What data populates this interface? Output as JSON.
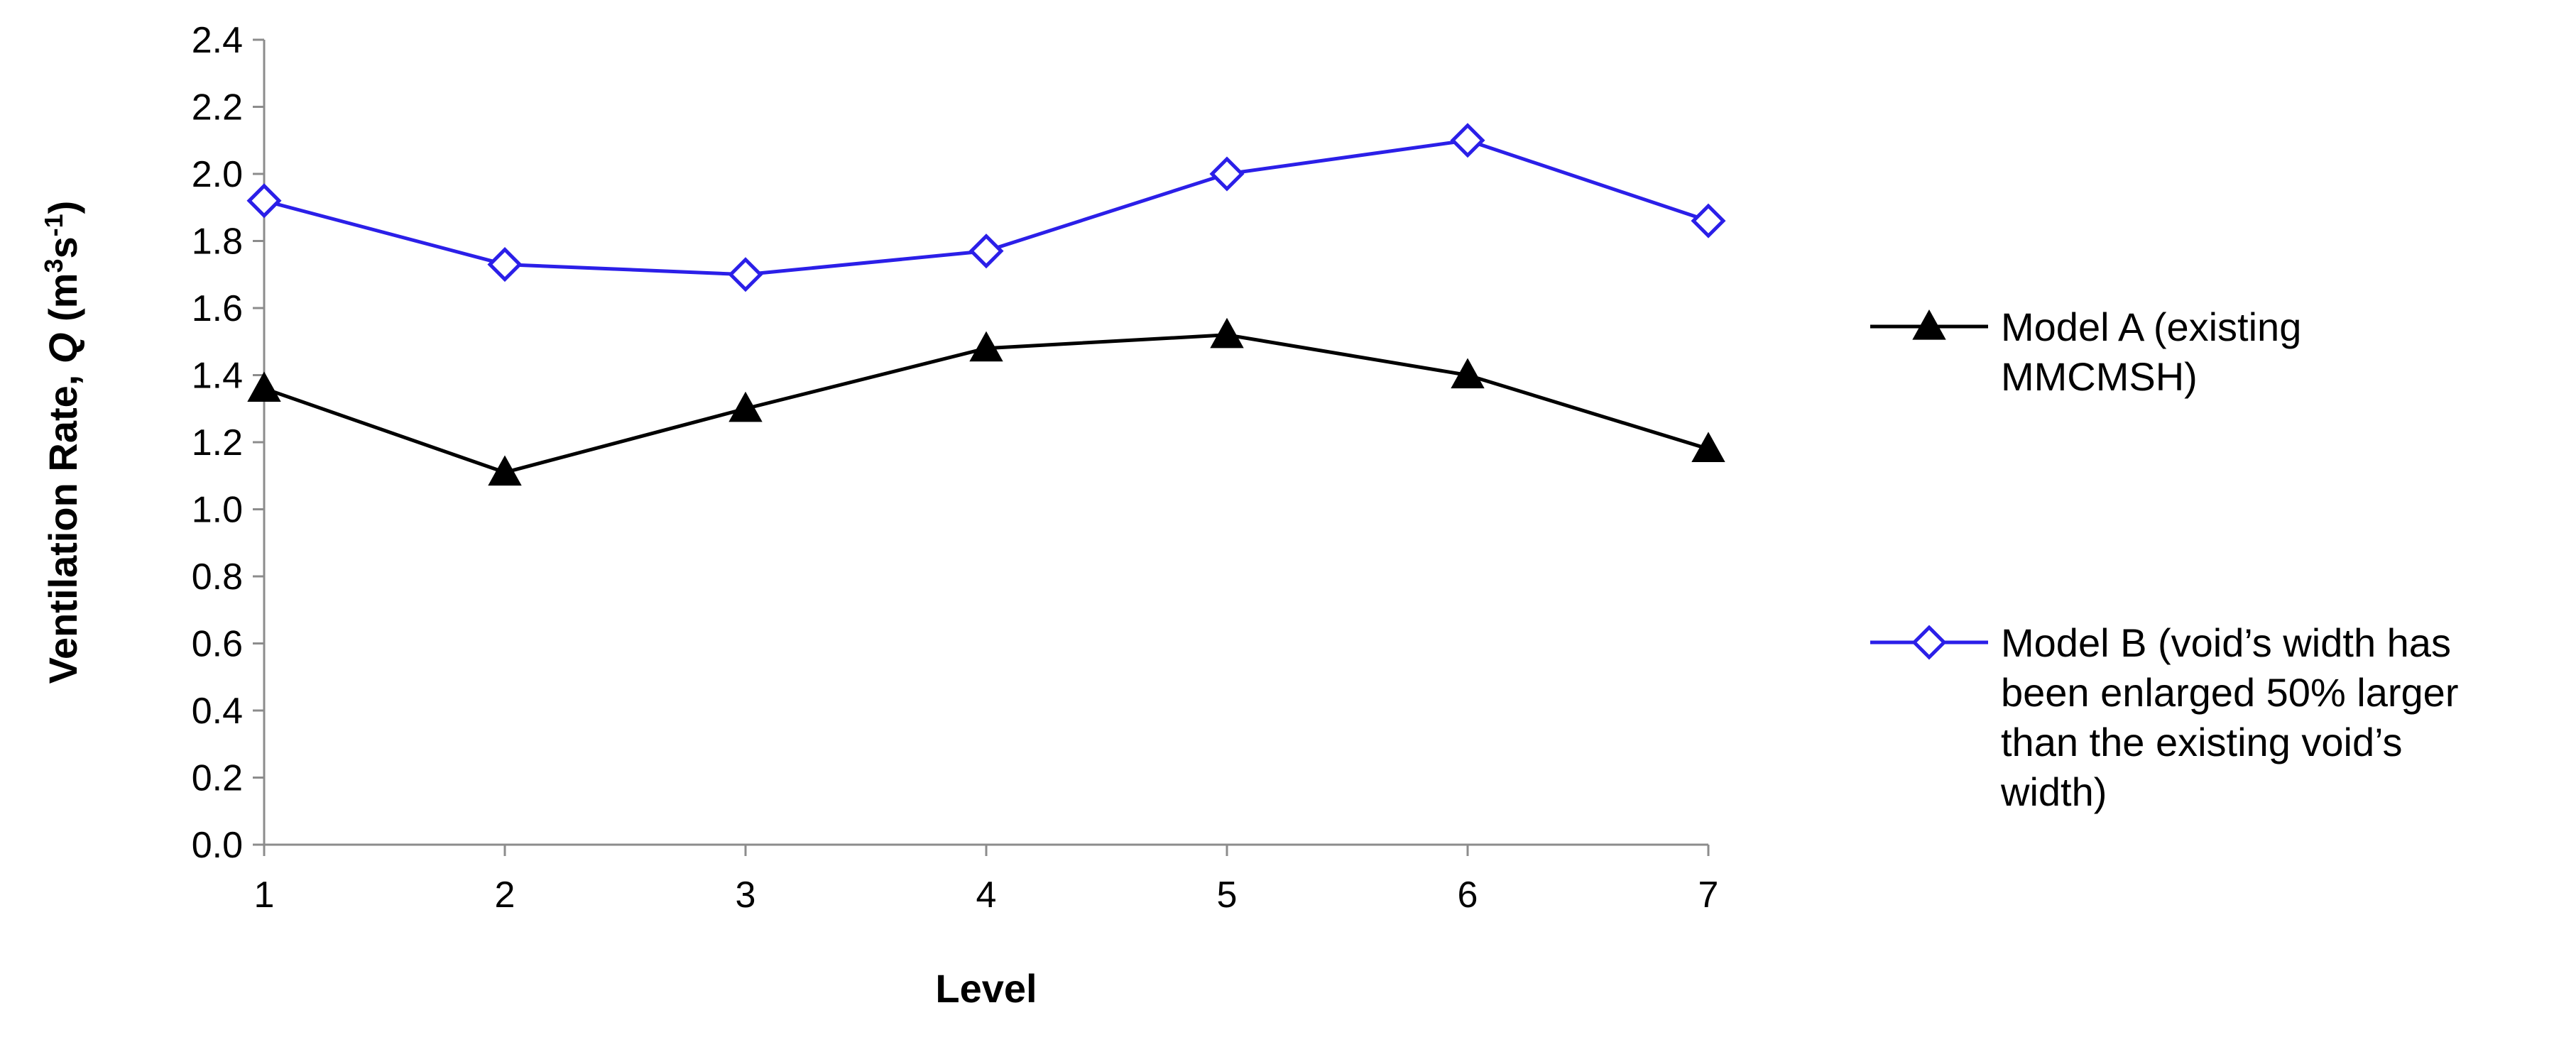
{
  "chart_data": {
    "type": "line",
    "title": "",
    "xlabel": "Level",
    "ylabel": {
      "prefix": "Ventilation Rate, ",
      "var": "Q",
      "unit_open": " (m",
      "unit_sup1": "3",
      "unit_mid": "s",
      "unit_sup2": "-1",
      "unit_close": ")"
    },
    "x": [
      1,
      2,
      3,
      4,
      5,
      6,
      7
    ],
    "x_ticks": [
      "1",
      "2",
      "3",
      "4",
      "5",
      "6",
      "7"
    ],
    "ylim": [
      0,
      2.4
    ],
    "y_ticks": [
      "0.0",
      "0.2",
      "0.4",
      "0.6",
      "0.8",
      "1.0",
      "1.2",
      "1.4",
      "1.6",
      "1.8",
      "2.0",
      "2.2",
      "2.4"
    ],
    "grid": false,
    "legend_position": "right",
    "series": [
      {
        "name": "Model A (existing MMCMSH)",
        "legend_lines": [
          "Model A (existing",
          "MMCMSH)"
        ],
        "values": [
          1.36,
          1.11,
          1.3,
          1.48,
          1.52,
          1.4,
          1.18
        ],
        "color": "#000000",
        "marker": "filled-triangle"
      },
      {
        "name": "Model B (void’s width has been enlarged 50% larger than the existing void’s width)",
        "legend_lines": [
          "Model B (void’s width has",
          "been enlarged 50% larger",
          "than the existing void’s",
          "width)"
        ],
        "values": [
          1.92,
          1.73,
          1.7,
          1.77,
          2.0,
          2.1,
          1.86
        ],
        "color": "#2B1FE8",
        "marker": "hollow-diamond"
      }
    ]
  }
}
